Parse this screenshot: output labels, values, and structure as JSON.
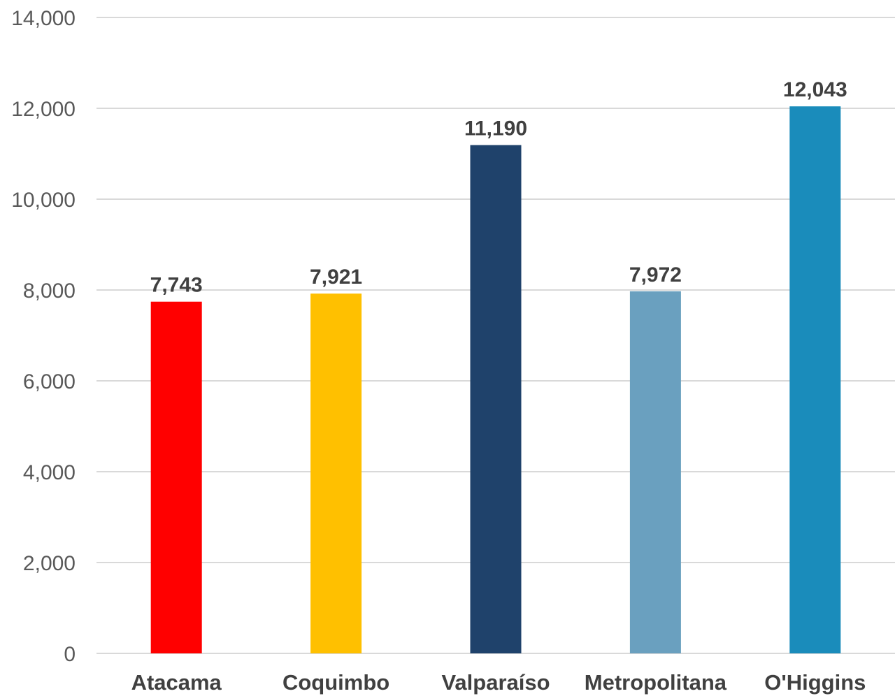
{
  "chart_data": {
    "type": "bar",
    "categories": [
      "Atacama",
      "Coquimbo",
      "Valparaíso",
      "Metropolitana",
      "O'Higgins"
    ],
    "values": [
      7743,
      7921,
      11190,
      7972,
      12043
    ],
    "value_labels": [
      "7,743",
      "7,921",
      "11,190",
      "7,972",
      "12,043"
    ],
    "colors": [
      "#ff0000",
      "#ffc000",
      "#1f426b",
      "#6aa0bf",
      "#1a8cbb"
    ],
    "ylim": [
      0,
      14000
    ],
    "yticks": [
      0,
      2000,
      4000,
      6000,
      8000,
      10000,
      12000,
      14000
    ],
    "ytick_labels": [
      "0",
      "2,000",
      "4,000",
      "6,000",
      "8,000",
      "10,000",
      "12,000",
      "14,000"
    ],
    "grid": true,
    "legend": false
  }
}
